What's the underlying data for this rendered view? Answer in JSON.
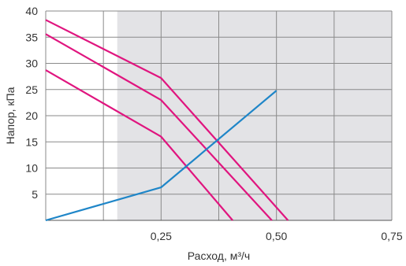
{
  "chart_data": {
    "type": "line",
    "title": "",
    "xlabel": "Расход, м³/ч",
    "ylabel": "Напор, кПа",
    "xlim": [
      0,
      0.75
    ],
    "ylim": [
      0,
      40
    ],
    "x_ticks": [
      0.25,
      0.5,
      0.75
    ],
    "x_tick_labels": [
      "0,25",
      "0,50",
      "0,75"
    ],
    "y_ticks": [
      5,
      10,
      15,
      20,
      25,
      30,
      35,
      40
    ],
    "y_tick_labels": [
      "5",
      "10",
      "15",
      "20",
      "25",
      "30",
      "35",
      "40"
    ],
    "grid": true,
    "grid_x_values": [
      0.125,
      0.25,
      0.375,
      0.5,
      0.625
    ],
    "shaded_region": {
      "x_from": 0.155,
      "x_to": 0.75,
      "color": "#e3e3e6"
    },
    "series": [
      {
        "color": "#e0157f",
        "x": [
          0,
          0.25,
          0.525
        ],
        "y": [
          38.3,
          27.2,
          0
        ]
      },
      {
        "color": "#e0157f",
        "x": [
          0,
          0.25,
          0.49
        ],
        "y": [
          35.6,
          23.0,
          0
        ]
      },
      {
        "color": "#e0157f",
        "x": [
          0,
          0.25,
          0.405
        ],
        "y": [
          28.7,
          16.0,
          0
        ]
      },
      {
        "color": "#1f86c8",
        "x": [
          0,
          0.25,
          0.5
        ],
        "y": [
          0,
          6.3,
          24.8
        ]
      }
    ]
  }
}
